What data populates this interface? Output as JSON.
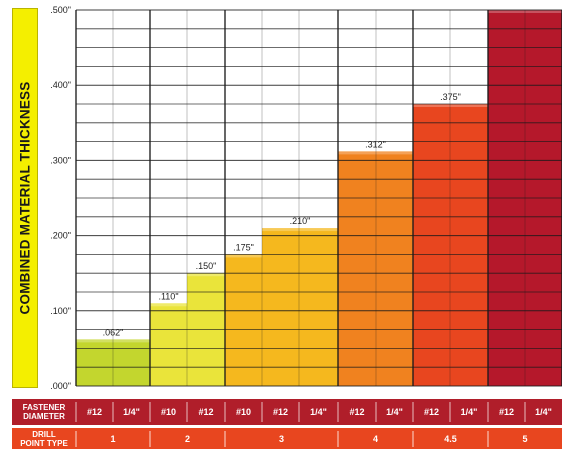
{
  "chart_data": {
    "type": "bar",
    "ylabel": "COMBINED MATERIAL THICKNESS",
    "ylim": [
      0,
      0.5
    ],
    "y_ticks": [
      ".000\"",
      ".100\"",
      ".200\"",
      ".300\"",
      ".400\"",
      ".500\""
    ],
    "y_tick_values": [
      0,
      0.1,
      0.2,
      0.3,
      0.4,
      0.5
    ],
    "grid": true,
    "categories": [
      "#12",
      "1/4\"",
      "#10",
      "#12",
      "#10",
      "#12",
      "1/4\"",
      "#12",
      "1/4\"",
      "#12",
      "1/4\"",
      "#12",
      "1/4\""
    ],
    "values": [
      0.062,
      0.062,
      0.11,
      0.15,
      0.175,
      0.21,
      0.21,
      0.312,
      0.312,
      0.375,
      0.375,
      0.5,
      0.5
    ],
    "bars": [
      {
        "label": ".062\"",
        "value": 0.062,
        "span": [
          0,
          2
        ],
        "color": "#c3d62e"
      },
      {
        "label": ".110\"",
        "value": 0.11,
        "span": [
          2,
          3
        ],
        "color": "#eae43a"
      },
      {
        "label": ".150\"",
        "value": 0.15,
        "span": [
          3,
          4
        ],
        "color": "#eae43a"
      },
      {
        "label": ".175\"",
        "value": 0.175,
        "span": [
          4,
          5
        ],
        "color": "#f5b81e"
      },
      {
        "label": ".210\"",
        "value": 0.21,
        "span": [
          5,
          7
        ],
        "color": "#f5b81e"
      },
      {
        "label": ".312\"",
        "value": 0.312,
        "span": [
          7,
          9
        ],
        "color": "#f0821f"
      },
      {
        "label": ".375\"",
        "value": 0.375,
        "span": [
          9,
          11
        ],
        "color": "#e8461f"
      },
      {
        "label": "",
        "value": 0.5,
        "span": [
          11,
          13
        ],
        "color": "#b5182b"
      }
    ],
    "fastener_row_label": [
      "FASTENER",
      "DIAMETER"
    ],
    "fastener_diameters": [
      "#12",
      "1/4\"",
      "#10",
      "#12",
      "#10",
      "#12",
      "1/4\"",
      "#12",
      "1/4\"",
      "#12",
      "1/4\"",
      "#12",
      "1/4\""
    ],
    "drill_row_label": [
      "DRILL",
      "POINT TYPE"
    ],
    "drill_point_types": [
      {
        "label": "1",
        "span": [
          0,
          2
        ]
      },
      {
        "label": "2",
        "span": [
          2,
          4
        ]
      },
      {
        "label": "3",
        "span": [
          4,
          7
        ]
      },
      {
        "label": "4",
        "span": [
          7,
          9
        ]
      },
      {
        "label": "4.5",
        "span": [
          9,
          11
        ]
      },
      {
        "label": "5",
        "span": [
          11,
          13
        ]
      }
    ],
    "colors": {
      "fastener_row": "#b01e2a",
      "drill_row": "#e8461f",
      "grid": "#1a1a1a",
      "axis_highlight": "#f4ef00"
    }
  }
}
